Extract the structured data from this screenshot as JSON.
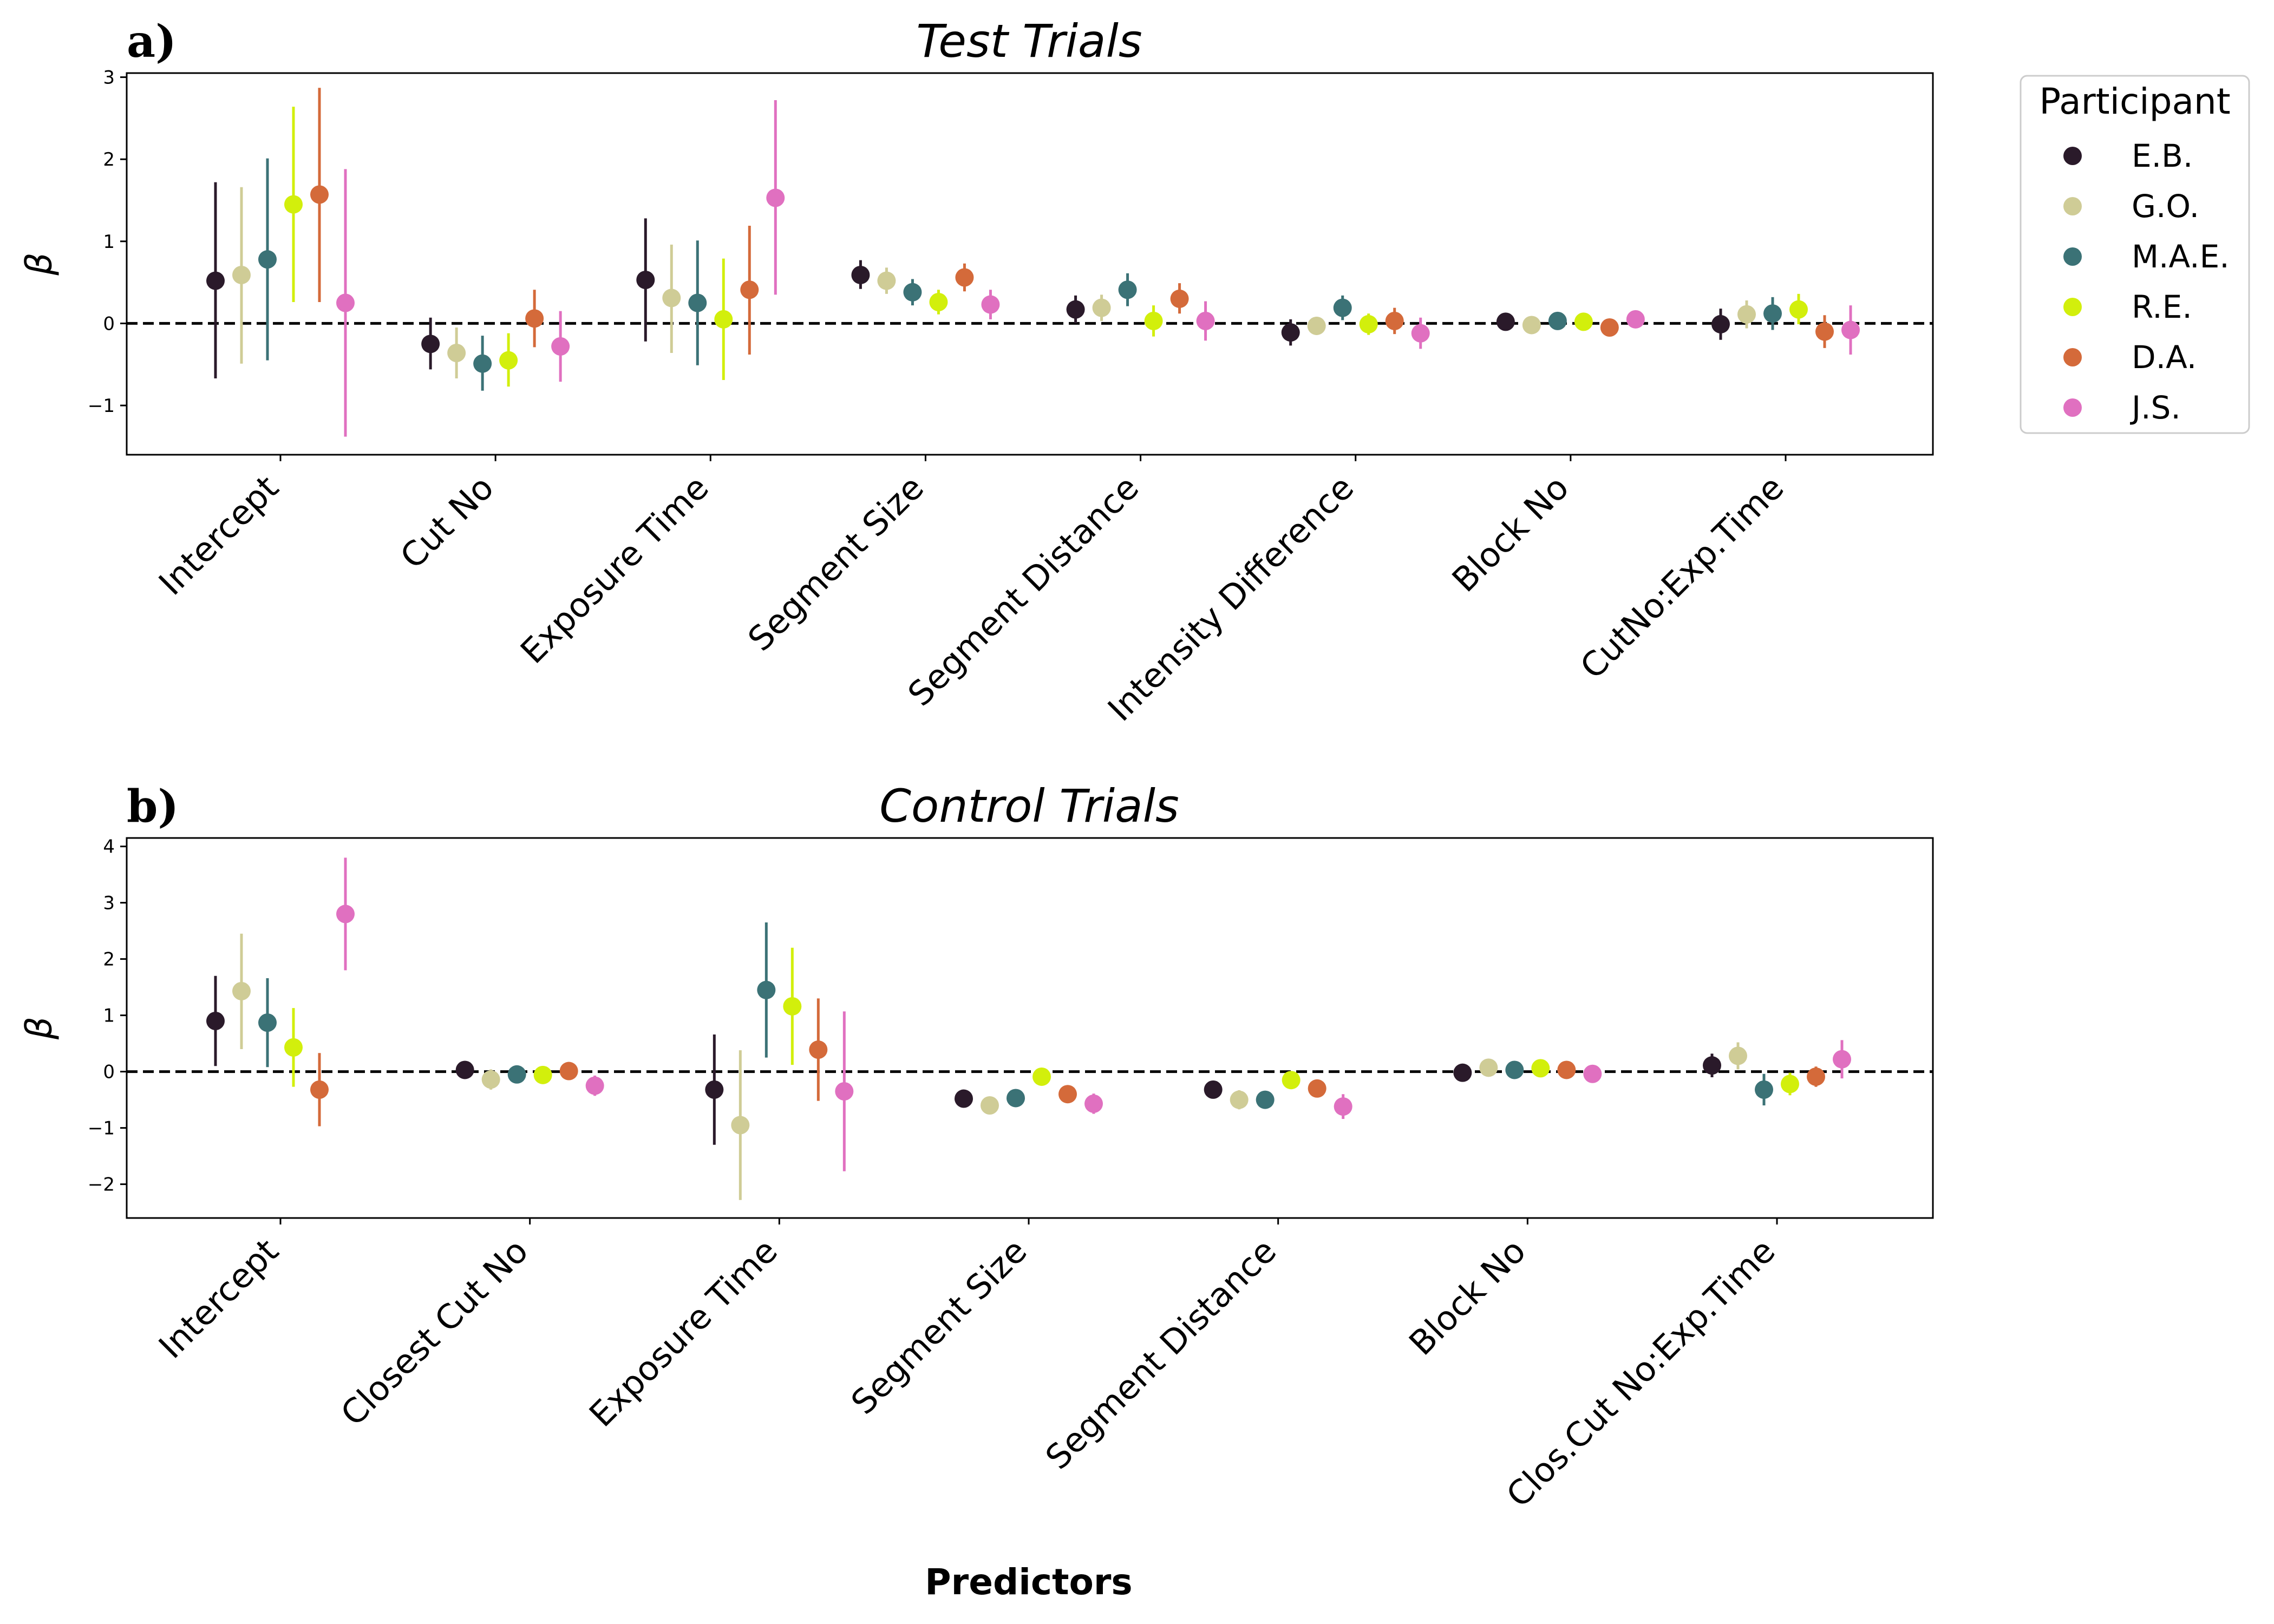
{
  "xlabel": "Predictors",
  "legend": {
    "title": "Participant",
    "placement": "outside-top-right",
    "entries": [
      {
        "name": "E.B.",
        "color": "#2a1a2a"
      },
      {
        "name": "G.O.",
        "color": "#cfcc96"
      },
      {
        "name": "M.A.E.",
        "color": "#3b7276"
      },
      {
        "name": "R.E.",
        "color": "#d2ef0c"
      },
      {
        "name": "D.A.",
        "color": "#d46a3a"
      },
      {
        "name": "J.S.",
        "color": "#e070c0"
      }
    ]
  },
  "chart_data": [
    {
      "type": "scatter",
      "panel_label": "a)",
      "title": "Test Trials",
      "ylabel": "β",
      "ylim": [
        -1.6,
        3.05
      ],
      "yticks": [
        -1,
        0,
        1,
        2,
        3
      ],
      "reference_line": 0,
      "categories": [
        "Intercept",
        "Cut No",
        "Exposure Time",
        "Segment Size",
        "Segment Distance",
        "Intensity Difference",
        "Block No",
        "CutNo:Exp.Time"
      ],
      "series": [
        {
          "name": "E.B.",
          "values": [
            0.52,
            -0.25,
            0.53,
            0.59,
            0.17,
            -0.11,
            0.02,
            -0.01
          ],
          "lower": [
            -0.67,
            -0.56,
            -0.22,
            0.42,
            0.0,
            -0.27,
            -0.06,
            -0.2
          ],
          "upper": [
            1.72,
            0.07,
            1.28,
            0.77,
            0.34,
            0.05,
            0.1,
            0.18
          ]
        },
        {
          "name": "G.O.",
          "values": [
            0.59,
            -0.36,
            0.31,
            0.52,
            0.19,
            -0.03,
            -0.02,
            0.11
          ],
          "lower": [
            -0.49,
            -0.67,
            -0.36,
            0.36,
            0.03,
            -0.14,
            -0.08,
            -0.06
          ],
          "upper": [
            1.66,
            -0.05,
            0.96,
            0.68,
            0.35,
            0.08,
            0.04,
            0.28
          ]
        },
        {
          "name": "M.A.E.",
          "values": [
            0.78,
            -0.49,
            0.25,
            0.38,
            0.41,
            0.19,
            0.03,
            0.12
          ],
          "lower": [
            -0.45,
            -0.82,
            -0.51,
            0.22,
            0.21,
            0.04,
            -0.04,
            -0.08
          ],
          "upper": [
            2.01,
            -0.15,
            1.01,
            0.54,
            0.61,
            0.34,
            0.1,
            0.32
          ]
        },
        {
          "name": "R.E.",
          "values": [
            1.45,
            -0.45,
            0.05,
            0.26,
            0.03,
            -0.01,
            0.02,
            0.17
          ],
          "lower": [
            0.26,
            -0.77,
            -0.69,
            0.11,
            -0.16,
            -0.14,
            -0.05,
            -0.01
          ],
          "upper": [
            2.64,
            -0.12,
            0.79,
            0.41,
            0.22,
            0.12,
            0.09,
            0.36
          ]
        },
        {
          "name": "D.A.",
          "values": [
            1.57,
            0.06,
            0.41,
            0.56,
            0.3,
            0.03,
            -0.05,
            -0.1
          ],
          "lower": [
            0.26,
            -0.29,
            -0.38,
            0.39,
            0.12,
            -0.13,
            -0.14,
            -0.3
          ],
          "upper": [
            2.87,
            0.41,
            1.19,
            0.73,
            0.49,
            0.19,
            0.04,
            0.1
          ]
        },
        {
          "name": "J.S.",
          "values": [
            0.25,
            -0.28,
            1.53,
            0.23,
            0.03,
            -0.12,
            0.05,
            -0.08
          ],
          "lower": [
            -1.38,
            -0.71,
            0.35,
            0.05,
            -0.21,
            -0.31,
            -0.02,
            -0.38
          ],
          "upper": [
            1.88,
            0.15,
            2.72,
            0.41,
            0.27,
            0.07,
            0.12,
            0.22
          ]
        }
      ]
    },
    {
      "type": "scatter",
      "panel_label": "b)",
      "title": "Control Trials",
      "ylabel": "β",
      "ylim": [
        -2.6,
        4.15
      ],
      "yticks": [
        -2,
        -1,
        0,
        1,
        2,
        3,
        4
      ],
      "reference_line": 0,
      "categories": [
        "Intercept",
        "Closest Cut No",
        "Exposure Time",
        "Segment Size",
        "Segment Distance",
        "Block No",
        "Clos.Cut No:Exp.Time"
      ],
      "series": [
        {
          "name": "E.B.",
          "values": [
            0.9,
            0.03,
            -0.32,
            -0.48,
            -0.32,
            -0.02,
            0.11
          ],
          "lower": [
            0.1,
            -0.06,
            -1.3,
            -0.6,
            -0.44,
            -0.08,
            -0.1
          ],
          "upper": [
            1.7,
            0.12,
            0.66,
            -0.36,
            -0.2,
            0.04,
            0.32
          ]
        },
        {
          "name": "G.O.",
          "values": [
            1.43,
            -0.14,
            -0.95,
            -0.6,
            -0.5,
            0.07,
            0.28
          ],
          "lower": [
            0.4,
            -0.32,
            -2.28,
            -0.75,
            -0.67,
            -0.02,
            0.04
          ],
          "upper": [
            2.45,
            0.04,
            0.38,
            -0.45,
            -0.33,
            0.16,
            0.52
          ]
        },
        {
          "name": "M.A.E.",
          "values": [
            0.87,
            -0.05,
            1.45,
            -0.47,
            -0.5,
            0.03,
            -0.32
          ],
          "lower": [
            0.08,
            -0.13,
            0.25,
            -0.6,
            -0.62,
            -0.03,
            -0.6
          ],
          "upper": [
            1.66,
            0.03,
            2.65,
            -0.34,
            -0.38,
            0.09,
            -0.04
          ]
        },
        {
          "name": "R.E.",
          "values": [
            0.43,
            -0.06,
            1.16,
            -0.09,
            -0.15,
            0.06,
            -0.22
          ],
          "lower": [
            -0.27,
            -0.14,
            0.12,
            -0.19,
            -0.26,
            -0.01,
            -0.42
          ],
          "upper": [
            1.13,
            0.02,
            2.2,
            0.01,
            -0.04,
            0.13,
            -0.02
          ]
        },
        {
          "name": "D.A.",
          "values": [
            -0.32,
            0.01,
            0.39,
            -0.4,
            -0.3,
            0.03,
            -0.09
          ],
          "lower": [
            -0.97,
            -0.06,
            -0.52,
            -0.52,
            -0.41,
            -0.04,
            -0.27
          ],
          "upper": [
            0.33,
            0.08,
            1.3,
            -0.28,
            -0.19,
            0.1,
            0.09
          ]
        },
        {
          "name": "J.S.",
          "values": [
            2.8,
            -0.25,
            -0.35,
            -0.57,
            -0.62,
            -0.04,
            0.22
          ],
          "lower": [
            1.8,
            -0.43,
            -1.77,
            -0.75,
            -0.84,
            -0.12,
            -0.12
          ],
          "upper": [
            3.8,
            -0.07,
            1.07,
            -0.39,
            -0.4,
            0.04,
            0.56
          ]
        }
      ]
    }
  ]
}
